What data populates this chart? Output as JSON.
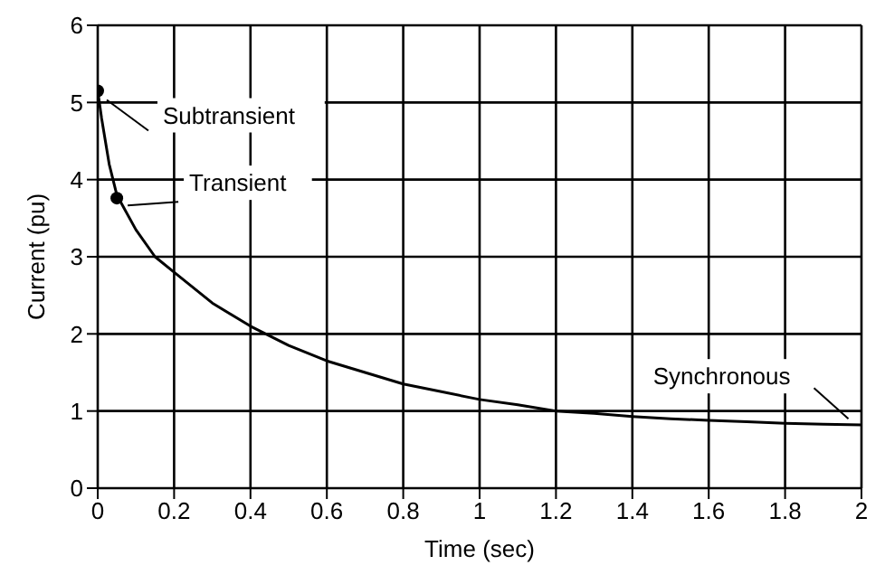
{
  "chart_data": {
    "type": "line",
    "xlabel": "Time (sec)",
    "ylabel": "Current (pu)",
    "xlim": [
      0,
      2
    ],
    "ylim": [
      0,
      6
    ],
    "xticks": [
      0,
      0.2,
      0.4,
      0.6,
      0.8,
      1,
      1.2,
      1.4,
      1.6,
      1.8,
      2
    ],
    "yticks": [
      0,
      1,
      2,
      3,
      4,
      5,
      6
    ],
    "grid": true,
    "series": [
      {
        "type": "line",
        "color": "#000000",
        "x": [
          0,
          0.01,
          0.03,
          0.05,
          0.1,
          0.15,
          0.2,
          0.3,
          0.4,
          0.5,
          0.6,
          0.7,
          0.8,
          0.9,
          1.0,
          1.1,
          1.2,
          1.3,
          1.4,
          1.5,
          1.6,
          1.7,
          1.8,
          1.9,
          2.0
        ],
        "values": [
          5.15,
          4.8,
          4.2,
          3.8,
          3.35,
          3.0,
          2.8,
          2.4,
          2.1,
          1.85,
          1.65,
          1.5,
          1.35,
          1.25,
          1.15,
          1.08,
          1.0,
          0.97,
          0.93,
          0.9,
          0.88,
          0.86,
          0.84,
          0.83,
          0.82
        ]
      },
      {
        "type": "scatter",
        "color": "#000000",
        "x": [
          0,
          0.05
        ],
        "values": [
          5.15,
          3.76
        ]
      }
    ],
    "annotations": [
      {
        "text": "Subtransient",
        "x": 0,
        "y": 5.15
      },
      {
        "text": "Transient",
        "x": 0.05,
        "y": 3.76
      },
      {
        "text": "Synchronous",
        "x": 1.98,
        "y": 0.83
      }
    ]
  }
}
